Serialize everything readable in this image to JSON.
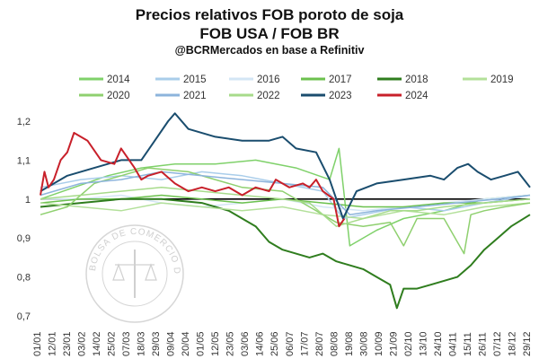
{
  "chart_data": {
    "type": "line",
    "title": "Precios relativos FOB poroto de soja",
    "subtitle": "FOB USA / FOB BR",
    "source": "@BCRMercados en base a Refinitiv",
    "watermark": "BOLSA DE COMERCIO DE ROSARIO",
    "ylim": [
      0.7,
      1.2
    ],
    "yticks": [
      "0,7",
      "0,8",
      "0,9",
      "1",
      "1,1",
      "1,2"
    ],
    "reference_line": 1.0,
    "x_ticks": [
      "01/01",
      "12/01",
      "23/01",
      "03/02",
      "14/02",
      "25/02",
      "07/03",
      "18/03",
      "29/03",
      "09/04",
      "20/04",
      "01/05",
      "12/05",
      "23/05",
      "03/06",
      "14/06",
      "25/06",
      "06/07",
      "17/07",
      "28/07",
      "08/08",
      "19/08",
      "30/08",
      "10/09",
      "21/09",
      "02/10",
      "13/10",
      "24/10",
      "04/11",
      "15/11",
      "26/11",
      "07/12",
      "18/12",
      "29/12"
    ],
    "legend_position": "top",
    "series": [
      {
        "name": "2014",
        "color": "#7fd16a",
        "width": 1.5,
        "x": [
          0,
          25,
          50,
          75,
          100,
          130,
          160,
          190,
          215,
          222,
          230,
          250,
          270,
          300,
          330,
          364
        ],
        "values": [
          1.0,
          1.03,
          1.06,
          1.08,
          1.09,
          1.09,
          1.1,
          1.08,
          1.05,
          1.13,
          0.88,
          0.92,
          0.95,
          0.97,
          1.0,
          1.01
        ]
      },
      {
        "name": "2015",
        "color": "#a9cdea",
        "width": 1.5,
        "x": [
          0,
          30,
          60,
          90,
          120,
          150,
          180,
          210,
          225,
          240,
          270,
          300,
          330,
          364
        ],
        "values": [
          1.03,
          1.05,
          1.06,
          1.05,
          1.07,
          1.06,
          1.04,
          1.02,
          0.95,
          0.96,
          0.98,
          0.97,
          0.99,
          1.01
        ]
      },
      {
        "name": "2016",
        "color": "#d3e6f5",
        "width": 1.5,
        "x": [
          0,
          30,
          60,
          90,
          120,
          150,
          180,
          210,
          240,
          270,
          300,
          330,
          364
        ],
        "values": [
          1.0,
          1.0,
          1.01,
          0.99,
          0.98,
          0.99,
          1.0,
          0.98,
          0.97,
          0.98,
          0.99,
          1.0,
          1.01
        ]
      },
      {
        "name": "2017",
        "color": "#6cc14e",
        "width": 1.5,
        "x": [
          0,
          30,
          60,
          90,
          120,
          150,
          180,
          210,
          240,
          270,
          300,
          330,
          364
        ],
        "values": [
          0.99,
          1.0,
          1.0,
          1.01,
          1.0,
          0.99,
          1.0,
          0.99,
          0.98,
          0.98,
          0.99,
          0.99,
          1.0
        ]
      },
      {
        "name": "2018",
        "color": "#2f7d1e",
        "width": 2,
        "x": [
          0,
          30,
          60,
          90,
          120,
          140,
          160,
          170,
          180,
          190,
          200,
          210,
          220,
          230,
          240,
          250,
          260,
          265,
          270,
          280,
          290,
          300,
          310,
          320,
          330,
          340,
          350,
          364
        ],
        "values": [
          0.98,
          0.99,
          1.0,
          1.0,
          0.99,
          0.97,
          0.93,
          0.89,
          0.87,
          0.86,
          0.85,
          0.86,
          0.84,
          0.83,
          0.82,
          0.8,
          0.78,
          0.72,
          0.77,
          0.77,
          0.78,
          0.79,
          0.8,
          0.83,
          0.87,
          0.9,
          0.93,
          0.96
        ]
      },
      {
        "name": "2019",
        "color": "#b3e09a",
        "width": 1.5,
        "x": [
          0,
          30,
          60,
          90,
          120,
          150,
          180,
          210,
          240,
          270,
          300,
          330,
          364
        ],
        "values": [
          0.99,
          0.98,
          0.97,
          0.99,
          0.98,
          0.97,
          0.98,
          0.96,
          0.95,
          0.97,
          0.96,
          0.98,
          0.99
        ]
      },
      {
        "name": "2020",
        "color": "#8fd06f",
        "width": 1.5,
        "x": [
          0,
          20,
          40,
          60,
          80,
          110,
          130,
          150,
          180,
          200,
          220,
          240,
          260,
          270,
          280,
          300,
          315,
          320,
          330,
          345,
          364
        ],
        "values": [
          0.96,
          0.98,
          1.04,
          1.06,
          1.08,
          1.07,
          1.05,
          1.03,
          1.02,
          0.98,
          0.94,
          0.93,
          0.94,
          0.88,
          0.95,
          0.95,
          0.86,
          0.96,
          0.97,
          0.98,
          0.99
        ]
      },
      {
        "name": "2021",
        "color": "#8db4dc",
        "width": 1.5,
        "x": [
          0,
          30,
          60,
          90,
          120,
          150,
          180,
          210,
          230,
          250,
          280,
          310,
          340,
          364
        ],
        "values": [
          1.01,
          1.04,
          1.05,
          1.07,
          1.06,
          1.05,
          1.04,
          1.03,
          0.96,
          0.97,
          0.98,
          0.99,
          1.0,
          1.01
        ]
      },
      {
        "name": "2022",
        "color": "#a7db8b",
        "width": 1.5,
        "x": [
          0,
          30,
          60,
          90,
          120,
          150,
          180,
          200,
          220,
          240,
          260,
          280,
          300,
          330,
          364
        ],
        "values": [
          1.0,
          1.01,
          1.02,
          1.03,
          1.02,
          1.01,
          1.0,
          0.99,
          0.93,
          0.95,
          0.97,
          0.97,
          0.98,
          0.99,
          1.0
        ]
      },
      {
        "name": "2023",
        "color": "#1a4d6e",
        "width": 2,
        "x": [
          0,
          10,
          20,
          40,
          60,
          75,
          85,
          95,
          100,
          110,
          130,
          150,
          170,
          180,
          190,
          205,
          215,
          225,
          235,
          250,
          270,
          290,
          300,
          310,
          318,
          325,
          335,
          345,
          355,
          364
        ],
        "values": [
          1.02,
          1.04,
          1.06,
          1.08,
          1.1,
          1.1,
          1.15,
          1.2,
          1.22,
          1.18,
          1.16,
          1.15,
          1.15,
          1.16,
          1.13,
          1.12,
          1.05,
          0.95,
          1.02,
          1.04,
          1.05,
          1.06,
          1.05,
          1.08,
          1.09,
          1.07,
          1.05,
          1.06,
          1.07,
          1.03
        ]
      },
      {
        "name": "2024",
        "color": "#c8202a",
        "width": 2,
        "x": [
          0,
          3,
          6,
          10,
          15,
          20,
          25,
          35,
          45,
          55,
          60,
          70,
          75,
          80,
          90,
          100,
          110,
          120,
          130,
          140,
          150,
          160,
          170,
          175,
          185,
          195,
          200,
          205,
          210,
          218,
          222,
          226
        ],
        "values": [
          1.01,
          1.07,
          1.03,
          1.05,
          1.1,
          1.12,
          1.17,
          1.15,
          1.1,
          1.09,
          1.13,
          1.08,
          1.05,
          1.06,
          1.07,
          1.04,
          1.02,
          1.03,
          1.02,
          1.03,
          1.01,
          1.03,
          1.02,
          1.05,
          1.03,
          1.04,
          1.03,
          1.05,
          1.02,
          1.0,
          0.93,
          0.95
        ]
      }
    ]
  }
}
